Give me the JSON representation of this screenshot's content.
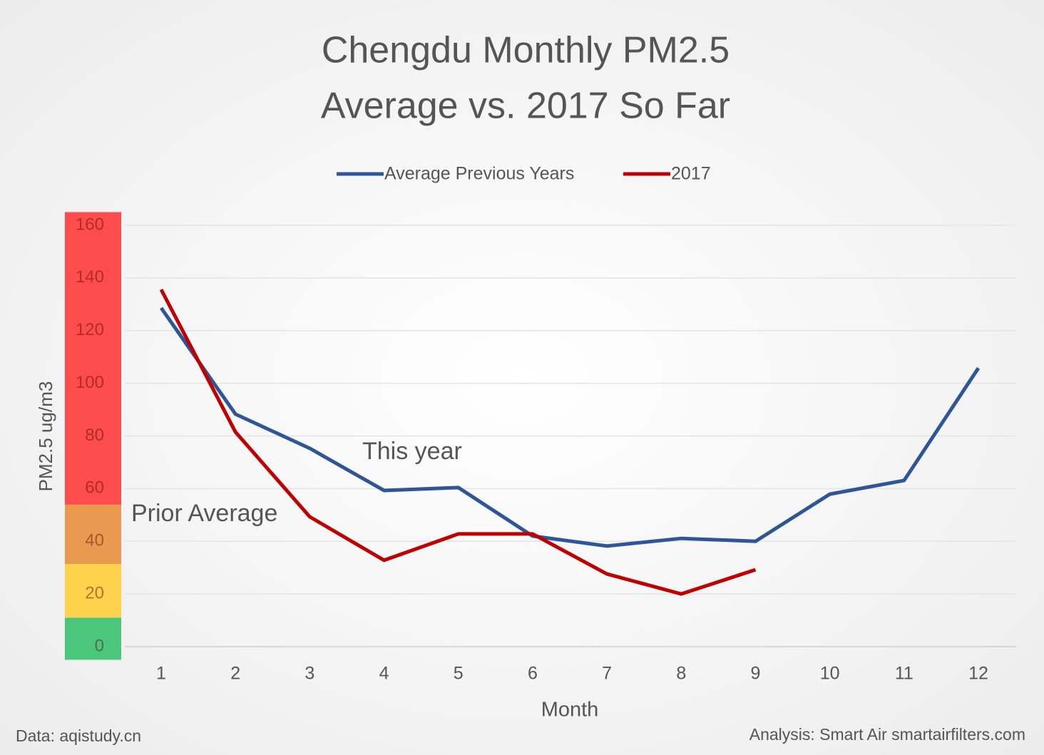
{
  "chart_data": {
    "type": "line",
    "title": [
      "Chengdu Monthly PM2.5",
      "Average vs. 2017 So Far"
    ],
    "categories": [
      "1",
      "2",
      "3",
      "4",
      "5",
      "6",
      "7",
      "8",
      "9",
      "10",
      "11",
      "12"
    ],
    "series": [
      {
        "name": "Average Previous Years",
        "color": "#2e5597",
        "values": [
          128.6,
          88.3,
          75.3,
          59.3,
          60.4,
          42,
          38.2,
          41.1,
          40,
          57.9,
          63.1,
          105.8
        ]
      },
      {
        "name": "2017",
        "color": "#c00000",
        "values": [
          135.6,
          81.5,
          49.3,
          32.8,
          42.8,
          42.8,
          27.6,
          20,
          29.2,
          null,
          null,
          null
        ]
      }
    ],
    "ylim": [
      0,
      160
    ],
    "yticks": [
      0,
      20,
      40,
      60,
      80,
      100,
      120,
      140,
      160
    ],
    "grid": true,
    "legend": "top",
    "ylabel": "PM2.5 ug/m3",
    "xlabel": "Month",
    "bands": [
      {
        "from": -5,
        "to": 11,
        "color": "#4cc67b"
      },
      {
        "from": 11,
        "to": 31.4,
        "color": "#fdd24c"
      },
      {
        "from": 31.4,
        "to": 53.9,
        "color": "#ea9a50"
      },
      {
        "from": 53.9,
        "to": 165,
        "color": "#fd4c4c"
      }
    ],
    "annotations": [
      "This year",
      "Prior Average"
    ],
    "source_left": "Data: aqistudy.cn",
    "source_right": "Analysis: Smart Air smartairfilters.com"
  }
}
